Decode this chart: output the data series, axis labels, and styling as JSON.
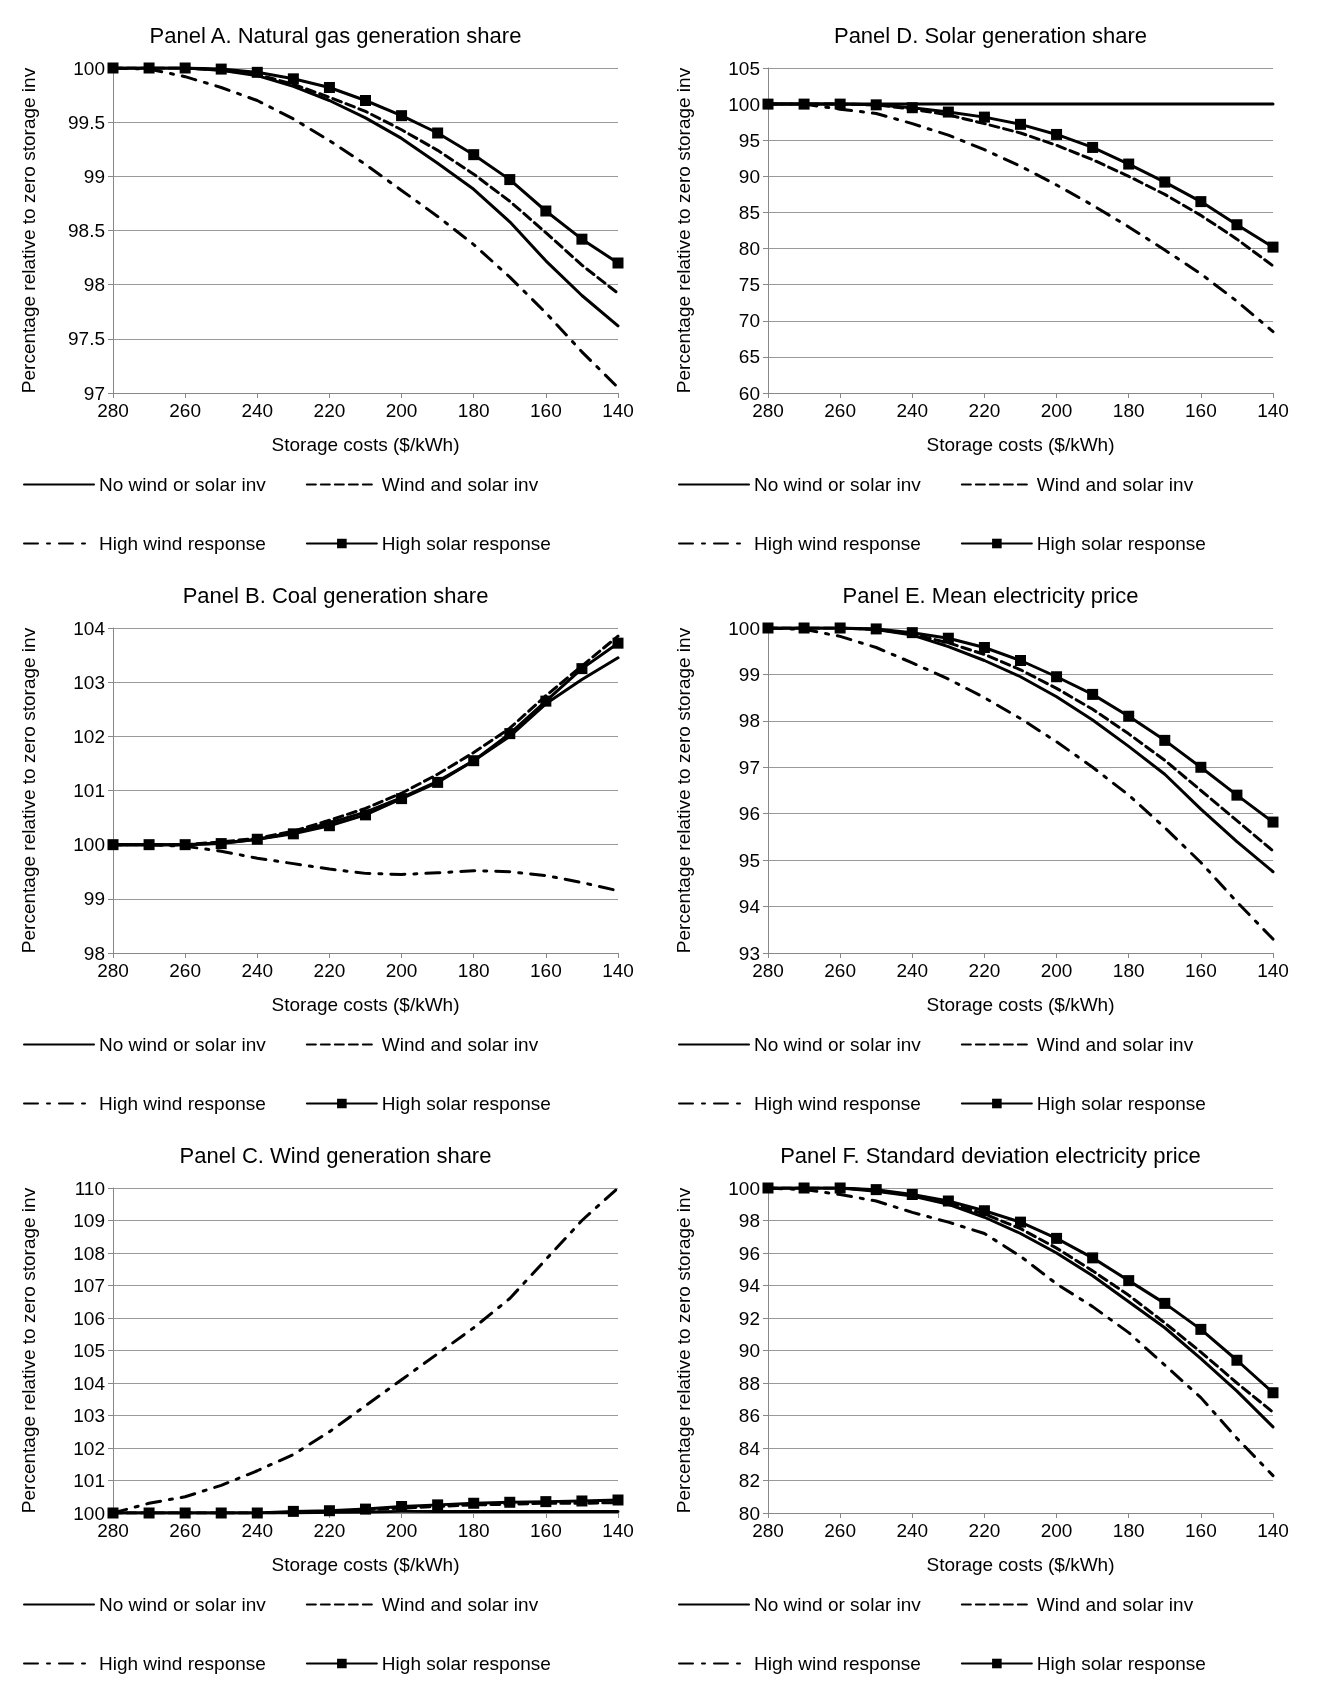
{
  "chart_data": [
    {
      "type": "line",
      "title": "Panel A. Natural gas generation share",
      "xlabel": "Storage costs ($/kWh)",
      "ylabel": "Percentage relative to zero storage inv",
      "x": [
        280,
        270,
        260,
        250,
        240,
        230,
        220,
        210,
        200,
        190,
        180,
        170,
        160,
        150,
        140
      ],
      "xlim": [
        280,
        140
      ],
      "xticks": [
        280,
        260,
        240,
        220,
        200,
        180,
        160,
        140
      ],
      "ylim": [
        97,
        100
      ],
      "yticks": [
        97,
        97.5,
        98,
        98.5,
        99,
        99.5,
        100
      ],
      "grid": "y",
      "legend": "bottom",
      "series": [
        {
          "name": "No wind or solar inv",
          "color": "#000000",
          "line_style": "solid",
          "marker": "none",
          "values": [
            100,
            100,
            100,
            99.98,
            99.93,
            99.83,
            99.7,
            99.54,
            99.35,
            99.12,
            98.88,
            98.58,
            98.22,
            97.9,
            97.62
          ]
        },
        {
          "name": "Wind and solar inv",
          "color": "#000000",
          "line_style": "dashed",
          "marker": "none",
          "values": [
            100,
            100,
            100,
            99.98,
            99.94,
            99.85,
            99.73,
            99.6,
            99.43,
            99.24,
            99.02,
            98.77,
            98.48,
            98.18,
            97.92
          ]
        },
        {
          "name": "High wind response",
          "color": "#000000",
          "line_style": "dotted",
          "marker": "none",
          "values": [
            100,
            99.99,
            99.92,
            99.82,
            99.7,
            99.53,
            99.33,
            99.11,
            98.87,
            98.63,
            98.37,
            98.07,
            97.74,
            97.38,
            97.05
          ]
        },
        {
          "name": "High solar response",
          "color": "#000000",
          "line_style": "solid",
          "marker": "square",
          "values": [
            100,
            100,
            100,
            99.99,
            99.96,
            99.9,
            99.82,
            99.7,
            99.56,
            99.4,
            99.2,
            98.97,
            98.68,
            98.42,
            98.2
          ]
        }
      ]
    },
    {
      "type": "line",
      "title": "Panel D. Solar generation share",
      "xlabel": "Storage costs ($/kWh)",
      "ylabel": "Percentage relative to zero storage inv",
      "x": [
        280,
        270,
        260,
        250,
        240,
        230,
        220,
        210,
        200,
        190,
        180,
        170,
        160,
        150,
        140
      ],
      "xlim": [
        280,
        140
      ],
      "xticks": [
        280,
        260,
        240,
        220,
        200,
        180,
        160,
        140
      ],
      "ylim": [
        60,
        105
      ],
      "yticks": [
        60,
        65,
        70,
        75,
        80,
        85,
        90,
        95,
        100,
        105
      ],
      "grid": "y",
      "legend": "bottom",
      "series": [
        {
          "name": "No wind or solar inv",
          "color": "#000000",
          "line_style": "solid",
          "marker": "none",
          "values": [
            100,
            100,
            100,
            100,
            100,
            100,
            100,
            100,
            100,
            100,
            100,
            100,
            100,
            100,
            100
          ]
        },
        {
          "name": "Wind and solar inv",
          "color": "#000000",
          "line_style": "dashed",
          "marker": "none",
          "values": [
            100,
            100,
            100,
            99.9,
            99.3,
            98.5,
            97.3,
            96,
            94.3,
            92.3,
            90,
            87.5,
            84.6,
            81.3,
            77.6
          ]
        },
        {
          "name": "High wind response",
          "color": "#000000",
          "line_style": "dotted",
          "marker": "none",
          "values": [
            100,
            100,
            99.3,
            98.7,
            97.3,
            95.7,
            93.7,
            91.4,
            88.8,
            86,
            83,
            79.8,
            76.5,
            72.7,
            68.5
          ]
        },
        {
          "name": "High solar response",
          "color": "#000000",
          "line_style": "solid",
          "marker": "square",
          "values": [
            100,
            100,
            100,
            99.9,
            99.5,
            98.9,
            98.2,
            97.2,
            95.8,
            94,
            91.7,
            89.2,
            86.5,
            83.3,
            80.2
          ]
        }
      ]
    },
    {
      "type": "line",
      "title": "Panel B. Coal generation share",
      "xlabel": "Storage costs ($/kWh)",
      "ylabel": "Percentage relative to zero storage inv",
      "x": [
        280,
        270,
        260,
        250,
        240,
        230,
        220,
        210,
        200,
        190,
        180,
        170,
        160,
        150,
        140
      ],
      "xlim": [
        280,
        140
      ],
      "xticks": [
        280,
        260,
        240,
        220,
        200,
        180,
        160,
        140
      ],
      "ylim": [
        98,
        104
      ],
      "yticks": [
        98,
        99,
        100,
        101,
        102,
        103,
        104
      ],
      "grid": "y",
      "legend": "bottom",
      "series": [
        {
          "name": "No wind or solar inv",
          "color": "#000000",
          "line_style": "solid",
          "marker": "none",
          "values": [
            100,
            100,
            100,
            100.03,
            100.1,
            100.22,
            100.4,
            100.6,
            100.87,
            101.17,
            101.55,
            102,
            102.6,
            103.05,
            103.45
          ]
        },
        {
          "name": "Wind and solar inv",
          "color": "#000000",
          "line_style": "dashed",
          "marker": "none",
          "values": [
            100,
            100,
            100,
            100.05,
            100.12,
            100.25,
            100.45,
            100.67,
            100.95,
            101.3,
            101.7,
            102.15,
            102.75,
            103.3,
            103.85
          ]
        },
        {
          "name": "High wind response",
          "color": "#000000",
          "line_style": "dotted",
          "marker": "none",
          "values": [
            100,
            100,
            99.97,
            99.88,
            99.75,
            99.65,
            99.55,
            99.47,
            99.45,
            99.48,
            99.52,
            99.5,
            99.43,
            99.3,
            99.15
          ]
        },
        {
          "name": "High solar response",
          "color": "#000000",
          "line_style": "solid",
          "marker": "square",
          "values": [
            100,
            100,
            100,
            100.02,
            100.1,
            100.2,
            100.35,
            100.55,
            100.85,
            101.15,
            101.55,
            102.05,
            102.65,
            103.25,
            103.72
          ]
        }
      ]
    },
    {
      "type": "line",
      "title": "Panel E. Mean electricity price",
      "xlabel": "Storage costs ($/kWh)",
      "ylabel": "Percentage relative to zero storage inv",
      "x": [
        280,
        270,
        260,
        250,
        240,
        230,
        220,
        210,
        200,
        190,
        180,
        170,
        160,
        150,
        140
      ],
      "xlim": [
        280,
        140
      ],
      "xticks": [
        280,
        260,
        240,
        220,
        200,
        180,
        160,
        140
      ],
      "ylim": [
        93,
        100
      ],
      "yticks": [
        93,
        94,
        95,
        96,
        97,
        98,
        99,
        100
      ],
      "grid": "y",
      "legend": "bottom",
      "series": [
        {
          "name": "No wind or solar inv",
          "color": "#000000",
          "line_style": "solid",
          "marker": "none",
          "values": [
            100,
            100,
            100,
            99.97,
            99.85,
            99.6,
            99.3,
            98.95,
            98.52,
            98.02,
            97.45,
            96.85,
            96.1,
            95.4,
            94.75
          ]
        },
        {
          "name": "Wind and solar inv",
          "color": "#000000",
          "line_style": "dashed",
          "marker": "none",
          "values": [
            100,
            100,
            100,
            99.97,
            99.87,
            99.68,
            99.43,
            99.1,
            98.7,
            98.25,
            97.72,
            97.15,
            96.5,
            95.85,
            95.2
          ]
        },
        {
          "name": "High wind response",
          "color": "#000000",
          "line_style": "dotted",
          "marker": "none",
          "values": [
            100,
            99.97,
            99.82,
            99.58,
            99.25,
            98.9,
            98.5,
            98.05,
            97.55,
            97,
            96.4,
            95.7,
            94.95,
            94.1,
            93.3
          ]
        },
        {
          "name": "High solar response",
          "color": "#000000",
          "line_style": "solid",
          "marker": "square",
          "values": [
            100,
            100,
            100,
            99.98,
            99.9,
            99.78,
            99.58,
            99.3,
            98.95,
            98.57,
            98.1,
            97.58,
            97,
            96.4,
            95.82
          ]
        }
      ]
    },
    {
      "type": "line",
      "title": "Panel C. Wind generation share",
      "xlabel": "Storage costs ($/kWh)",
      "ylabel": "Percentage relative to zero storage inv",
      "x": [
        280,
        270,
        260,
        250,
        240,
        230,
        220,
        210,
        200,
        190,
        180,
        170,
        160,
        150,
        140
      ],
      "xlim": [
        280,
        140
      ],
      "xticks": [
        280,
        260,
        240,
        220,
        200,
        180,
        160,
        140
      ],
      "ylim": [
        100,
        110
      ],
      "yticks": [
        100,
        101,
        102,
        103,
        104,
        105,
        106,
        107,
        108,
        109,
        110
      ],
      "grid": "y",
      "legend": "bottom",
      "series": [
        {
          "name": "No wind or solar inv",
          "color": "#000000",
          "line_style": "solid",
          "marker": "none",
          "values": [
            100,
            100,
            100,
            100,
            100,
            100,
            100.02,
            100.03,
            100.05,
            100.05,
            100.05,
            100.05,
            100.05,
            100.05,
            100.05
          ]
        },
        {
          "name": "Wind and solar inv",
          "color": "#000000",
          "line_style": "dashed",
          "marker": "none",
          "values": [
            100,
            100,
            100,
            100,
            100,
            100.02,
            100.05,
            100.1,
            100.15,
            100.2,
            100.25,
            100.27,
            100.3,
            100.3,
            100.32
          ]
        },
        {
          "name": "High wind response",
          "color": "#000000",
          "line_style": "dotted",
          "marker": "none",
          "values": [
            100,
            100.3,
            100.5,
            100.85,
            101.3,
            101.8,
            102.5,
            103.3,
            104.1,
            104.9,
            105.7,
            106.6,
            107.8,
            109,
            110
          ]
        },
        {
          "name": "High solar response",
          "color": "#000000",
          "line_style": "solid",
          "marker": "square",
          "values": [
            100,
            100,
            100,
            100,
            100,
            100.05,
            100.07,
            100.12,
            100.2,
            100.25,
            100.3,
            100.33,
            100.35,
            100.37,
            100.4
          ]
        }
      ]
    },
    {
      "type": "line",
      "title": "Panel F. Standard deviation electricity price",
      "xlabel": "Storage costs ($/kWh)",
      "ylabel": "Percentage relative to zero storage inv",
      "x": [
        280,
        270,
        260,
        250,
        240,
        230,
        220,
        210,
        200,
        190,
        180,
        170,
        160,
        150,
        140
      ],
      "xlim": [
        280,
        140
      ],
      "xticks": [
        280,
        260,
        240,
        220,
        200,
        180,
        160,
        140
      ],
      "ylim": [
        80,
        100
      ],
      "yticks": [
        80,
        82,
        84,
        86,
        88,
        90,
        92,
        94,
        96,
        98,
        100
      ],
      "grid": "y",
      "legend": "bottom",
      "series": [
        {
          "name": "No wind or solar inv",
          "color": "#000000",
          "line_style": "solid",
          "marker": "none",
          "values": [
            100,
            100,
            100,
            99.8,
            99.5,
            99,
            98.2,
            97.2,
            96,
            94.6,
            93,
            91.4,
            89.5,
            87.5,
            85.3
          ]
        },
        {
          "name": "Wind and solar inv",
          "color": "#000000",
          "line_style": "dashed",
          "marker": "none",
          "values": [
            100,
            100,
            100,
            99.85,
            99.55,
            99.1,
            98.4,
            97.5,
            96.3,
            94.9,
            93.4,
            91.7,
            89.9,
            88,
            86.2
          ]
        },
        {
          "name": "High wind response",
          "color": "#000000",
          "line_style": "dotted",
          "marker": "none",
          "values": [
            100,
            99.9,
            99.6,
            99.2,
            98.5,
            97.9,
            97.2,
            95.8,
            94.1,
            92.7,
            91.1,
            89.1,
            87.1,
            84.6,
            82.3
          ]
        },
        {
          "name": "High solar response",
          "color": "#000000",
          "line_style": "solid",
          "marker": "square",
          "values": [
            100,
            100,
            100,
            99.9,
            99.6,
            99.2,
            98.6,
            97.9,
            96.9,
            95.7,
            94.3,
            92.9,
            91.3,
            89.4,
            87.4
          ]
        }
      ]
    }
  ]
}
